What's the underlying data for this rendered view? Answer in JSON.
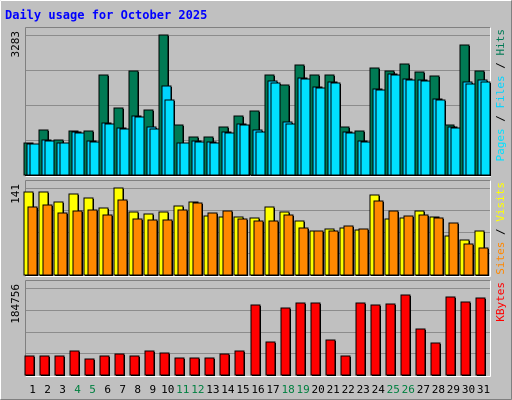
{
  "colors": {
    "background": "#c0c0c0",
    "title": "#0000ff",
    "hits": "#007a54",
    "files": "#00d4ff",
    "pages": "#00e0ff",
    "visits": "#ffff00",
    "sites": "#ff8800",
    "kbytes": "#ff0000",
    "weekend_label": "#008040",
    "weekday_label": "#000000"
  },
  "chart_data": {
    "type": "bar",
    "title": "Daily usage for October 2025",
    "categories": [
      "1",
      "2",
      "3",
      "4",
      "5",
      "6",
      "7",
      "8",
      "9",
      "10",
      "11",
      "12",
      "13",
      "14",
      "15",
      "16",
      "17",
      "18",
      "19",
      "20",
      "21",
      "22",
      "23",
      "24",
      "25",
      "26",
      "27",
      "28",
      "29",
      "30",
      "31"
    ],
    "weekend_days": [
      "4",
      "5",
      "11",
      "12",
      "18",
      "19",
      "25",
      "26"
    ],
    "panels": [
      {
        "id": "hits",
        "max_label": "3283",
        "ymax": 3283,
        "right_label_parts": [
          {
            "text": "Pages",
            "series": "pages"
          },
          {
            "text": " / ",
            "series": "sep"
          },
          {
            "text": "Files",
            "series": "files"
          },
          {
            "text": " / ",
            "series": "sep"
          },
          {
            "text": "Hits",
            "series": "hits"
          }
        ],
        "series": [
          {
            "name": "Hits",
            "key": "hits",
            "values": [
              760,
              1060,
              820,
              1030,
              1030,
              2350,
              1560,
              2450,
              1520,
              3283,
              1170,
              890,
              890,
              1130,
              1390,
              1510,
              2350,
              2100,
              2590,
              2350,
              2350,
              1130,
              1030,
              2500,
              2440,
              2600,
              2420,
              2330,
              1170,
              3040,
              2440
            ]
          },
          {
            "name": "Files",
            "key": "files",
            "values": [
              730,
              810,
              760,
              1000,
              790,
              1230,
              1100,
              1390,
              1130,
              2080,
              750,
              800,
              770,
              1010,
              1200,
              1060,
              2200,
              1240,
              2280,
              2060,
              2180,
              1000,
              800,
              2010,
              2370,
              2250,
              2230,
              1780,
              1130,
              2180,
              2230
            ]
          },
          {
            "name": "Pages",
            "key": "pages",
            "values": [
              720,
              800,
              740,
              980,
              780,
              1200,
              1070,
              1360,
              1090,
              1770,
              740,
              780,
              750,
              990,
              1180,
              1020,
              2160,
              1200,
              2240,
              2030,
              2150,
              980,
              770,
              2000,
              2350,
              2220,
              2200,
              1750,
              1110,
              2130,
              2190
            ]
          }
        ]
      },
      {
        "id": "visits",
        "max_label": "141",
        "ymax": 141,
        "right_label_parts": [
          {
            "text": "Sites",
            "series": "sites"
          },
          {
            "text": " / ",
            "series": "sep"
          },
          {
            "text": "Visits",
            "series": "visits"
          }
        ],
        "series": [
          {
            "name": "Visits",
            "key": "visits",
            "values": [
              135,
              135,
              118,
              132,
              125,
              108,
              141,
              102,
              99,
              102,
              112,
              118,
              96,
              94,
              94,
              92,
              110,
              102,
              87,
              72,
              74,
              76,
              73,
              129,
              90,
              92,
              104,
              94,
              63,
              57,
              71
            ]
          },
          {
            "name": "Sites",
            "key": "sites",
            "values": [
              110,
              114,
              100,
              104,
              106,
              98,
              122,
              90,
              89,
              89,
              106,
              116,
              100,
              103,
              90,
              88,
              87,
              98,
              76,
              72,
              72,
              80,
              75,
              120,
              104,
              96,
              98,
              92,
              84,
              50,
              44
            ]
          }
        ]
      },
      {
        "id": "kbytes",
        "max_label": "184756",
        "ymax": 184756,
        "right_label_parts": [
          {
            "text": "KBytes",
            "series": "kbytes"
          }
        ],
        "series": [
          {
            "name": "KBytes",
            "key": "kbytes",
            "values": [
              40000,
              40000,
              40000,
              52000,
              33000,
              41000,
              45000,
              41000,
              52000,
              46000,
              36000,
              36000,
              37000,
              45000,
              52000,
              148000,
              70000,
              142000,
              152000,
              152000,
              75000,
              40000,
              152000,
              148000,
              150000,
              170000,
              98000,
              68000,
              165000,
              156000,
              163000
            ]
          }
        ]
      }
    ]
  }
}
